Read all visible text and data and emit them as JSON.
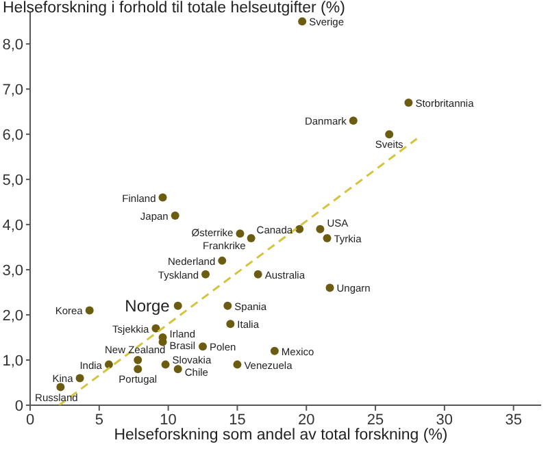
{
  "chart_data": {
    "type": "scatter",
    "ylabel": "Helseforskning i forhold til totale helseutgifter (%)",
    "xlabel": "Helseforskning som andel av total forskning (%)",
    "xlim": [
      0,
      37
    ],
    "xticks": [
      0,
      5,
      10,
      15,
      20,
      25,
      30,
      35
    ],
    "ylim": [
      0,
      8.7
    ],
    "yticks": [
      0,
      {
        "value": 1,
        "label": "1,0"
      },
      {
        "value": 2,
        "label": "2,0"
      },
      {
        "value": 3,
        "label": "3,0"
      },
      {
        "value": 4,
        "label": "4,0"
      },
      {
        "value": 5,
        "label": "5,0"
      },
      {
        "value": 6,
        "label": "6,0"
      },
      {
        "value": 7,
        "label": "7,0"
      },
      {
        "value": 8,
        "label": "8,0"
      }
    ],
    "grid": false,
    "legend": false,
    "marker": "circle",
    "series": [
      {
        "color": "#6b5c12",
        "x": [
          19.7,
          27.4,
          23.4,
          26.0,
          19.5,
          21.0,
          21.5,
          16.5,
          21.7,
          17.7,
          15.0,
          9.6,
          10.5,
          15.2,
          16.0,
          13.9,
          12.7,
          10.7,
          14.3,
          14.5,
          4.3,
          9.1,
          9.6,
          9.6,
          12.5,
          7.8,
          9.8,
          5.7,
          10.7,
          7.8,
          3.6,
          2.2
        ],
        "values": [
          8.5,
          6.7,
          6.3,
          6.0,
          3.9,
          3.9,
          3.7,
          2.9,
          2.6,
          1.2,
          0.9,
          4.6,
          4.2,
          3.8,
          3.7,
          3.2,
          2.9,
          2.2,
          2.2,
          1.8,
          2.1,
          1.7,
          1.5,
          1.4,
          1.3,
          1.0,
          0.9,
          0.9,
          0.8,
          0.8,
          0.6,
          0.4
        ]
      },
      {
        "type": "line",
        "color": "#d4c43c",
        "line_style": "dashed",
        "marker": "none",
        "x": [
          2.1,
          28.0
        ],
        "values": [
          0,
          5.9
        ]
      }
    ],
    "annotations": [
      {
        "text": "Sverige",
        "x": 19.7,
        "y": 8.5
      },
      {
        "text": "Storbritannia",
        "x": 27.4,
        "y": 6.7
      },
      {
        "text": "Danmark",
        "x": 23.4,
        "y": 6.3
      },
      {
        "text": "Sveits",
        "x": 26.0,
        "y": 6.0
      },
      {
        "text": "Canada",
        "x": 19.5,
        "y": 3.9
      },
      {
        "text": "USA",
        "x": 21.0,
        "y": 3.9
      },
      {
        "text": "Tyrkia",
        "x": 21.5,
        "y": 3.7
      },
      {
        "text": "Australia",
        "x": 16.5,
        "y": 2.9
      },
      {
        "text": "Ungarn",
        "x": 21.7,
        "y": 2.6
      },
      {
        "text": "Mexico",
        "x": 17.7,
        "y": 1.2
      },
      {
        "text": "Venezuela",
        "x": 15.0,
        "y": 0.9
      },
      {
        "text": "Finland",
        "x": 9.6,
        "y": 4.6
      },
      {
        "text": "Japan",
        "x": 10.5,
        "y": 4.2
      },
      {
        "text": "Østerrike",
        "x": 15.2,
        "y": 3.8
      },
      {
        "text": "Frankrike",
        "x": 16.0,
        "y": 3.7
      },
      {
        "text": "Nederland",
        "x": 13.9,
        "y": 3.2
      },
      {
        "text": "Tyskland",
        "x": 12.7,
        "y": 2.9
      },
      {
        "text": "Norge",
        "x": 10.7,
        "y": 2.2
      },
      {
        "text": "Spania",
        "x": 14.3,
        "y": 2.2
      },
      {
        "text": "Italia",
        "x": 14.5,
        "y": 1.8
      },
      {
        "text": "Korea",
        "x": 4.3,
        "y": 2.1
      },
      {
        "text": "Tsjekkia",
        "x": 9.1,
        "y": 1.7
      },
      {
        "text": "Irland",
        "x": 9.6,
        "y": 1.5
      },
      {
        "text": "Brasil",
        "x": 9.6,
        "y": 1.4
      },
      {
        "text": "Polen",
        "x": 12.5,
        "y": 1.3
      },
      {
        "text": "New Zealand",
        "x": 7.8,
        "y": 1.0
      },
      {
        "text": "Slovakia",
        "x": 9.8,
        "y": 0.9
      },
      {
        "text": "India",
        "x": 5.7,
        "y": 0.9
      },
      {
        "text": "Chile",
        "x": 10.7,
        "y": 0.8
      },
      {
        "text": "Portugal",
        "x": 7.8,
        "y": 0.8
      },
      {
        "text": "Kina",
        "x": 3.6,
        "y": 0.6
      },
      {
        "text": "Russland",
        "x": 2.2,
        "y": 0.4
      }
    ]
  }
}
